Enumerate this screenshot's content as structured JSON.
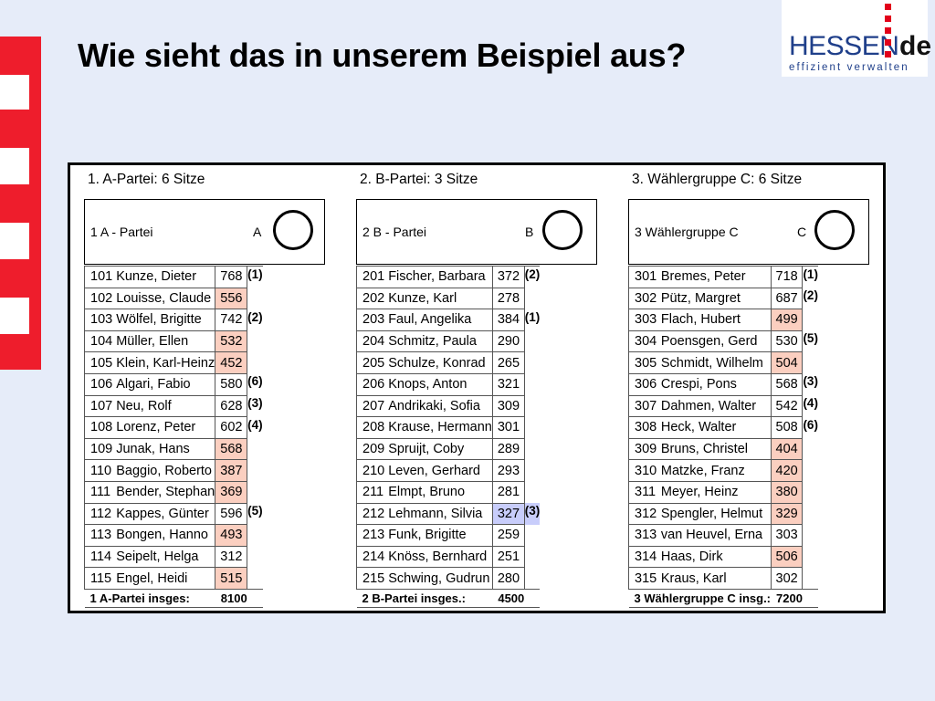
{
  "slide_title": "Wie sieht das in unserem Beispiel aus?",
  "logo": {
    "brand": "HESSEN",
    "brand_suffix": "de",
    "tagline": "effizient verwalten"
  },
  "colors": {
    "stripe_red": "#ee1d2c",
    "highlight_pink": "#fbcfc0",
    "highlight_blue": "#c8cdfb",
    "logo_blue": "#1f3f8a"
  },
  "groups": [
    {
      "heading": "1. A-Partei: 6 Sitze",
      "ballot_label": "1 A - Partei",
      "ballot_letter": "A",
      "total_label": "1 A-Partei insges:",
      "total_value": "8100",
      "rows": [
        {
          "num": "101",
          "name": "Kunze, Dieter",
          "votes": "768",
          "rank": "(1)",
          "hl": ""
        },
        {
          "num": "102",
          "name": "Louisse, Claude",
          "votes": "556",
          "rank": "",
          "hl": "pink"
        },
        {
          "num": "103",
          "name": "Wölfel, Brigitte",
          "votes": "742",
          "rank": "(2)",
          "hl": ""
        },
        {
          "num": "104",
          "name": "Müller, Ellen",
          "votes": "532",
          "rank": "",
          "hl": "pink"
        },
        {
          "num": "105",
          "name": "Klein, Karl-Heinz",
          "votes": "452",
          "rank": "",
          "hl": "pink"
        },
        {
          "num": "106",
          "name": "Algari, Fabio",
          "votes": "580",
          "rank": "(6)",
          "hl": ""
        },
        {
          "num": "107",
          "name": "Neu, Rolf",
          "votes": "628",
          "rank": "(3)",
          "hl": ""
        },
        {
          "num": "108",
          "name": "Lorenz, Peter",
          "votes": "602",
          "rank": "(4)",
          "hl": ""
        },
        {
          "num": "109",
          "name": "Junak, Hans",
          "votes": "568",
          "rank": "",
          "hl": "pink"
        },
        {
          "num": "110",
          "name": "Baggio, Roberto",
          "votes": "387",
          "rank": "",
          "hl": "pink"
        },
        {
          "num": "111",
          "name": "Bender, Stephan",
          "votes": "369",
          "rank": "",
          "hl": "pink"
        },
        {
          "num": "112",
          "name": "Kappes, Günter",
          "votes": "596",
          "rank": "(5)",
          "hl": ""
        },
        {
          "num": "113",
          "name": "Bongen, Hanno",
          "votes": "493",
          "rank": "",
          "hl": "pink"
        },
        {
          "num": "114",
          "name": "Seipelt, Helga",
          "votes": "312",
          "rank": "",
          "hl": ""
        },
        {
          "num": "115",
          "name": "Engel, Heidi",
          "votes": "515",
          "rank": "",
          "hl": "pink"
        }
      ]
    },
    {
      "heading": "2. B-Partei: 3 Sitze",
      "ballot_label": "2 B - Partei",
      "ballot_letter": "B",
      "total_label": "2 B-Partei insges.:",
      "total_value": "4500",
      "rows": [
        {
          "num": "201",
          "name": "Fischer, Barbara",
          "votes": "372",
          "rank": "(2)",
          "hl": ""
        },
        {
          "num": "202",
          "name": "Kunze, Karl",
          "votes": "278",
          "rank": "",
          "hl": ""
        },
        {
          "num": "203",
          "name": "Faul, Angelika",
          "votes": "384",
          "rank": "(1)",
          "hl": ""
        },
        {
          "num": "204",
          "name": "Schmitz, Paula",
          "votes": "290",
          "rank": "",
          "hl": ""
        },
        {
          "num": "205",
          "name": "Schulze, Konrad",
          "votes": "265",
          "rank": "",
          "hl": ""
        },
        {
          "num": "206",
          "name": "Knops, Anton",
          "votes": "321",
          "rank": "",
          "hl": ""
        },
        {
          "num": "207",
          "name": "Andrikaki, Sofia",
          "votes": "309",
          "rank": "",
          "hl": ""
        },
        {
          "num": "208",
          "name": "Krause, Hermann",
          "votes": "301",
          "rank": "",
          "hl": ""
        },
        {
          "num": "209",
          "name": "Spruijt, Coby",
          "votes": "289",
          "rank": "",
          "hl": ""
        },
        {
          "num": "210",
          "name": "Leven, Gerhard",
          "votes": "293",
          "rank": "",
          "hl": ""
        },
        {
          "num": "211",
          "name": "Elmpt, Bruno",
          "votes": "281",
          "rank": "",
          "hl": ""
        },
        {
          "num": "212",
          "name": "Lehmann, Silvia",
          "votes": "327",
          "rank": "(3)",
          "hl": "blue"
        },
        {
          "num": "213",
          "name": "Funk, Brigitte",
          "votes": "259",
          "rank": "",
          "hl": ""
        },
        {
          "num": "214",
          "name": "Knöss, Bernhard",
          "votes": "251",
          "rank": "",
          "hl": ""
        },
        {
          "num": "215",
          "name": "Schwing, Gudrun",
          "votes": "280",
          "rank": "",
          "hl": ""
        }
      ]
    },
    {
      "heading": "3. Wählergruppe C: 6 Sitze",
      "ballot_label": "3 Wählergruppe C",
      "ballot_letter": "C",
      "total_label": "3 Wählergruppe C insg.:",
      "total_value": "7200",
      "rows": [
        {
          "num": "301",
          "name": "Bremes, Peter",
          "votes": "718",
          "rank": "(1)",
          "hl": ""
        },
        {
          "num": "302",
          "name": "Pütz, Margret",
          "votes": "687",
          "rank": "(2)",
          "hl": ""
        },
        {
          "num": "303",
          "name": "Flach, Hubert",
          "votes": "499",
          "rank": "",
          "hl": "pink"
        },
        {
          "num": "304",
          "name": "Poensgen, Gerd",
          "votes": "530",
          "rank": "(5)",
          "hl": ""
        },
        {
          "num": "305",
          "name": "Schmidt, Wilhelm",
          "votes": "504",
          "rank": "",
          "hl": "pink"
        },
        {
          "num": "306",
          "name": "Crespi, Pons",
          "votes": "568",
          "rank": "(3)",
          "hl": ""
        },
        {
          "num": "307",
          "name": "Dahmen, Walter",
          "votes": "542",
          "rank": "(4)",
          "hl": ""
        },
        {
          "num": "308",
          "name": "Heck, Walter",
          "votes": "508",
          "rank": "(6)",
          "hl": ""
        },
        {
          "num": "309",
          "name": "Bruns, Christel",
          "votes": "404",
          "rank": "",
          "hl": "pink"
        },
        {
          "num": "310",
          "name": "Matzke, Franz",
          "votes": "420",
          "rank": "",
          "hl": "pink"
        },
        {
          "num": "311",
          "name": "Meyer, Heinz",
          "votes": "380",
          "rank": "",
          "hl": "pink"
        },
        {
          "num": "312",
          "name": "Spengler, Helmut",
          "votes": "329",
          "rank": "",
          "hl": "pink"
        },
        {
          "num": "313",
          "name": "van Heuvel, Erna",
          "votes": "303",
          "rank": "",
          "hl": ""
        },
        {
          "num": "314",
          "name": "Haas, Dirk",
          "votes": "506",
          "rank": "",
          "hl": "pink"
        },
        {
          "num": "315",
          "name": "Kraus, Karl",
          "votes": "302",
          "rank": "",
          "hl": ""
        }
      ]
    }
  ]
}
